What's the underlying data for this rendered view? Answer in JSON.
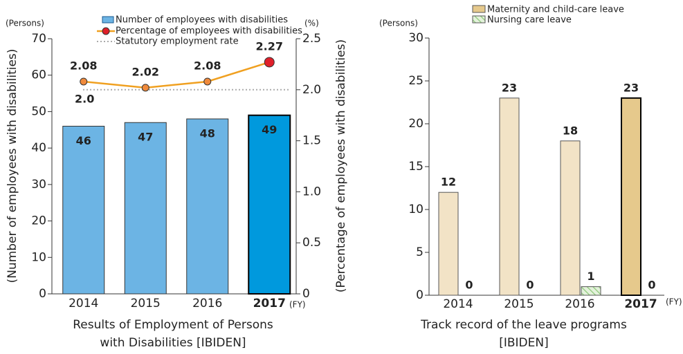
{
  "chart_data": [
    {
      "type": "bar_line",
      "title": [
        "Results of Employment of Persons",
        "with Disabilities [IBIDEN]"
      ],
      "y_unit": "(Persons)",
      "y2_unit": "(%)",
      "x_unit": "(FY)",
      "ylabel": "(Number of employees with disabilities)",
      "y2label": "(Percentage of employees with disabilities)",
      "categories": [
        "2014",
        "2015",
        "2016",
        "2017"
      ],
      "highlight_index": 3,
      "series": [
        {
          "name": "Number of employees with disabilities",
          "type": "bar",
          "color": "#6cb4e4",
          "highlight_color": "#0099dd",
          "values": [
            46,
            47,
            48,
            49
          ]
        },
        {
          "name": "Percentage of employees with disabilities",
          "type": "line",
          "axis": "y2",
          "color": "#f0a020",
          "marker_color": "#f08a3c",
          "highlight_color": "#e0202a",
          "values": [
            2.08,
            2.02,
            2.08,
            2.27
          ]
        }
      ],
      "reference": {
        "name": "Statutory employment rate",
        "value": 2,
        "label": "2.0",
        "color": "#aaaaaa"
      },
      "ylim": [
        0,
        70
      ],
      "yticks": [
        0,
        10,
        20,
        30,
        40,
        50,
        60,
        70
      ],
      "y2lim": [
        0,
        2.5
      ],
      "y2ticks": [
        0,
        0.5,
        {
          "value": 1,
          "label": "1.0"
        },
        1.5,
        {
          "value": 2,
          "label": "2.0"
        },
        2.5
      ]
    },
    {
      "type": "grouped_bar",
      "title": [
        "Track record of the leave programs",
        "[IBIDEN]"
      ],
      "y_unit": "(Persons)",
      "x_unit": "(FY)",
      "categories": [
        "2014",
        "2015",
        "2016",
        "2017"
      ],
      "highlight_index": 3,
      "series": [
        {
          "name": "Maternity and child-care leave",
          "color": "#f2e3c6",
          "highlight_color": "#e6c98c",
          "values": [
            12,
            23,
            18,
            23
          ]
        },
        {
          "name": "Nursing care leave",
          "color": "#cfe8c0",
          "hatch": true,
          "values": [
            0,
            0,
            1,
            0
          ]
        }
      ],
      "ylim": [
        0,
        30
      ],
      "yticks": [
        0,
        5,
        10,
        15,
        20,
        25,
        30
      ]
    }
  ]
}
